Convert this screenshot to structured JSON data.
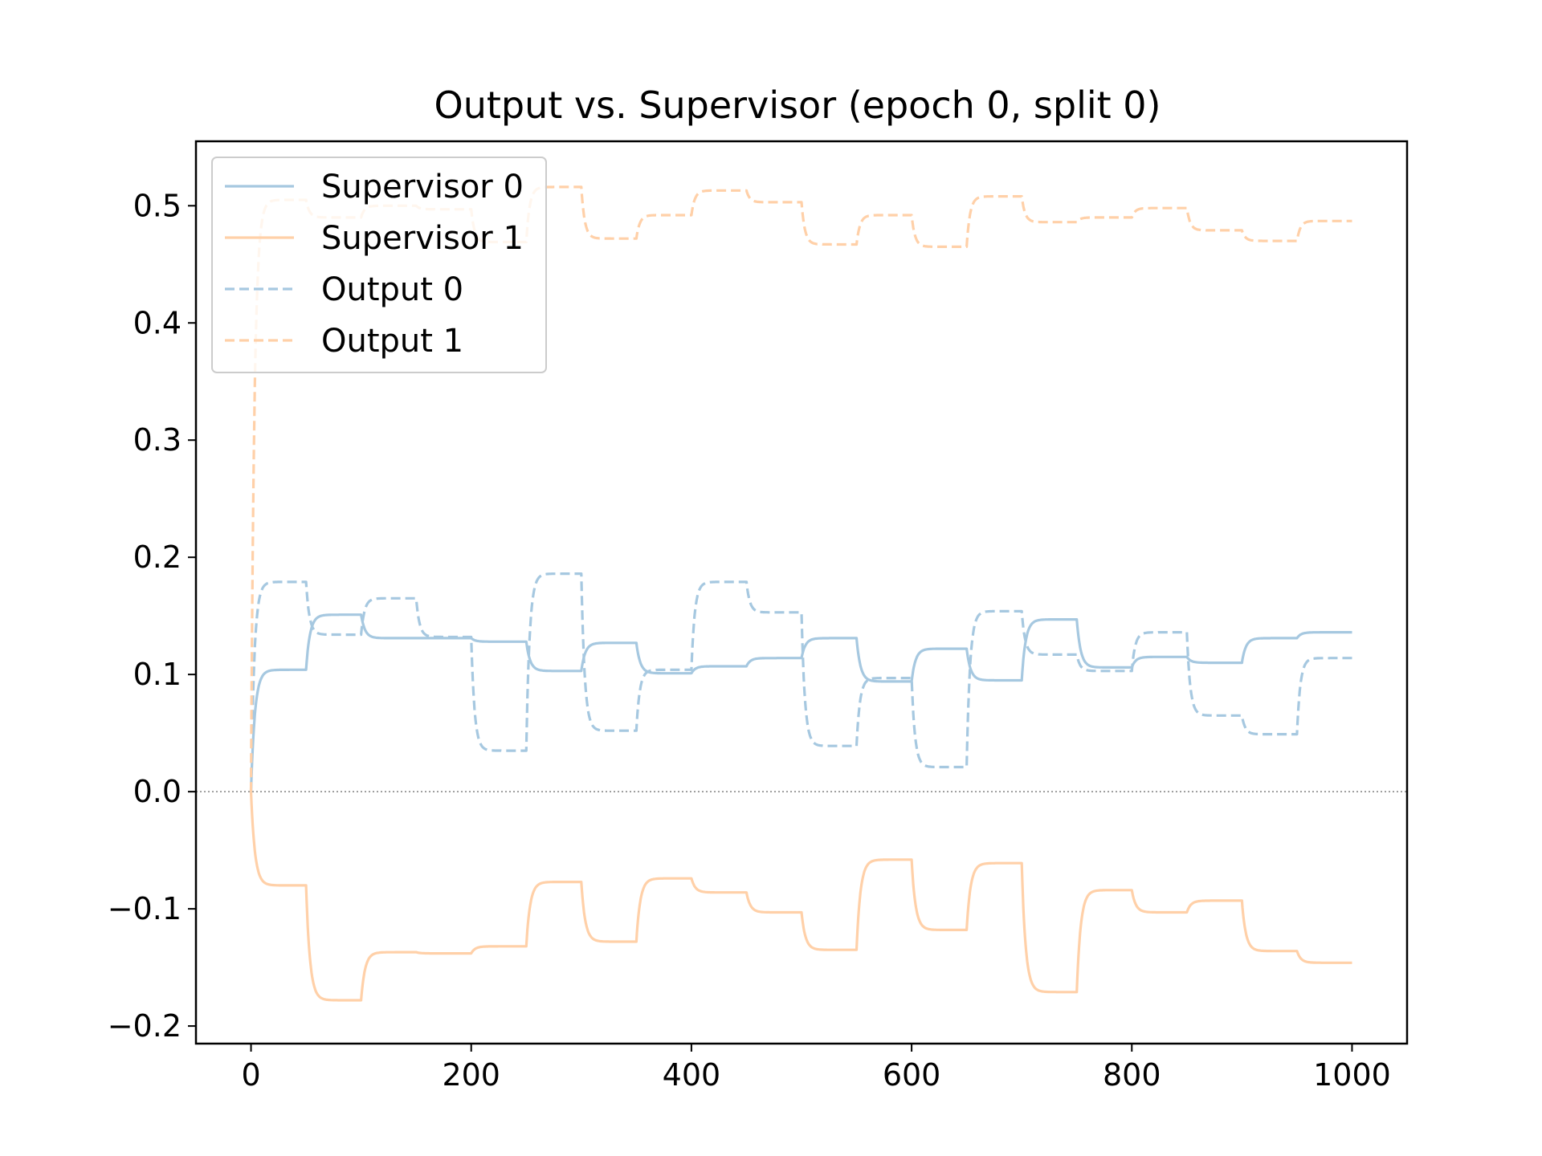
{
  "chart_data": {
    "type": "line",
    "title": "Output vs. Supervisor (epoch 0, split 0)",
    "xlabel": "",
    "ylabel": "",
    "xlim": [
      -50,
      1050
    ],
    "ylim": [
      -0.215,
      0.555
    ],
    "xticks": [
      0,
      200,
      400,
      600,
      800,
      1000
    ],
    "xtick_labels": [
      "0",
      "200",
      "400",
      "600",
      "800",
      "1000"
    ],
    "yticks": [
      -0.2,
      -0.1,
      0.0,
      0.1,
      0.2,
      0.3,
      0.4,
      0.5
    ],
    "ytick_labels": [
      "−0.2",
      "−0.1",
      "0.0",
      "0.1",
      "0.2",
      "0.3",
      "0.4",
      "0.5"
    ],
    "zero_line": true,
    "grid": false,
    "legend_position": "upper-left",
    "series": [
      {
        "name": "Supervisor 0",
        "color": "#a6c8e0",
        "style": "solid",
        "segments": [
          [
            0,
            50,
            0.104
          ],
          [
            50,
            100,
            0.151
          ],
          [
            100,
            150,
            0.131
          ],
          [
            150,
            200,
            0.131
          ],
          [
            200,
            250,
            0.128
          ],
          [
            250,
            300,
            0.103
          ],
          [
            300,
            350,
            0.127
          ],
          [
            350,
            400,
            0.101
          ],
          [
            400,
            450,
            0.107
          ],
          [
            450,
            500,
            0.114
          ],
          [
            500,
            550,
            0.131
          ],
          [
            550,
            600,
            0.094
          ],
          [
            600,
            650,
            0.122
          ],
          [
            650,
            700,
            0.095
          ],
          [
            700,
            750,
            0.147
          ],
          [
            750,
            800,
            0.106
          ],
          [
            800,
            850,
            0.115
          ],
          [
            850,
            900,
            0.11
          ],
          [
            900,
            950,
            0.131
          ],
          [
            950,
            1000,
            0.136
          ]
        ]
      },
      {
        "name": "Supervisor 1",
        "color": "#ffd0a8",
        "style": "solid",
        "segments": [
          [
            0,
            50,
            -0.08
          ],
          [
            50,
            100,
            -0.178
          ],
          [
            100,
            150,
            -0.137
          ],
          [
            150,
            200,
            -0.138
          ],
          [
            200,
            250,
            -0.132
          ],
          [
            250,
            300,
            -0.077
          ],
          [
            300,
            350,
            -0.128
          ],
          [
            350,
            400,
            -0.074
          ],
          [
            400,
            450,
            -0.086
          ],
          [
            450,
            500,
            -0.103
          ],
          [
            500,
            550,
            -0.135
          ],
          [
            550,
            600,
            -0.058
          ],
          [
            600,
            650,
            -0.118
          ],
          [
            650,
            700,
            -0.061
          ],
          [
            700,
            750,
            -0.171
          ],
          [
            750,
            800,
            -0.084
          ],
          [
            800,
            850,
            -0.103
          ],
          [
            850,
            900,
            -0.093
          ],
          [
            900,
            950,
            -0.136
          ],
          [
            950,
            1000,
            -0.146
          ]
        ]
      },
      {
        "name": "Output 0",
        "color": "#a6c8e0",
        "style": "dashed",
        "segments": [
          [
            0,
            50,
            0.179
          ],
          [
            50,
            100,
            0.134
          ],
          [
            100,
            150,
            0.165
          ],
          [
            150,
            200,
            0.132
          ],
          [
            200,
            250,
            0.035
          ],
          [
            250,
            300,
            0.186
          ],
          [
            300,
            350,
            0.052
          ],
          [
            350,
            400,
            0.104
          ],
          [
            400,
            450,
            0.179
          ],
          [
            450,
            500,
            0.153
          ],
          [
            500,
            550,
            0.039
          ],
          [
            550,
            600,
            0.097
          ],
          [
            600,
            650,
            0.021
          ],
          [
            650,
            700,
            0.154
          ],
          [
            700,
            750,
            0.117
          ],
          [
            750,
            800,
            0.103
          ],
          [
            800,
            850,
            0.136
          ],
          [
            850,
            900,
            0.065
          ],
          [
            900,
            950,
            0.049
          ],
          [
            950,
            1000,
            0.114
          ]
        ]
      },
      {
        "name": "Output 1",
        "color": "#ffd0a8",
        "style": "dashed",
        "segments": [
          [
            0,
            50,
            0.505
          ],
          [
            50,
            100,
            0.49
          ],
          [
            100,
            150,
            0.5
          ],
          [
            150,
            200,
            0.497
          ],
          [
            200,
            250,
            0.469
          ],
          [
            250,
            300,
            0.516
          ],
          [
            300,
            350,
            0.472
          ],
          [
            350,
            400,
            0.492
          ],
          [
            400,
            450,
            0.513
          ],
          [
            450,
            500,
            0.503
          ],
          [
            500,
            550,
            0.467
          ],
          [
            550,
            600,
            0.492
          ],
          [
            600,
            650,
            0.465
          ],
          [
            650,
            700,
            0.508
          ],
          [
            700,
            750,
            0.486
          ],
          [
            750,
            800,
            0.49
          ],
          [
            800,
            850,
            0.498
          ],
          [
            850,
            900,
            0.479
          ],
          [
            900,
            950,
            0.47
          ],
          [
            950,
            1000,
            0.487
          ]
        ]
      }
    ]
  }
}
